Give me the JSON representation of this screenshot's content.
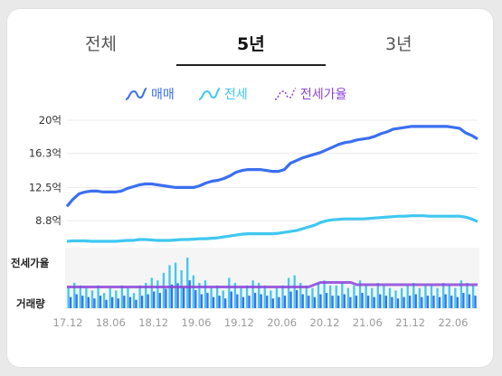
{
  "tabs": [
    {
      "label": "전체",
      "active": false
    },
    {
      "label": "5년",
      "active": true
    },
    {
      "label": "3년",
      "active": false
    }
  ],
  "legend": [
    {
      "label": "매매",
      "color": "#3a6ff0",
      "icon": "wave-solid-icon"
    },
    {
      "label": "전세",
      "color": "#3fc8f0",
      "icon": "wave-solid-icon"
    },
    {
      "label": "전세가율",
      "color": "#8b45d8",
      "icon": "wave-dashed-icon"
    }
  ],
  "lower_labels": {
    "ratio": "전세가율",
    "volume": "거래량"
  },
  "chart_data": {
    "type": "line",
    "y_ticks": [
      "20억",
      "16.3억",
      "12.5억",
      "8.8억"
    ],
    "y_tick_values": [
      20,
      16.3,
      12.5,
      8.8
    ],
    "ylim": [
      6,
      20.5
    ],
    "x_ticks": [
      "17.12",
      "18.06",
      "18.12",
      "19.06",
      "19.12",
      "20.06",
      "20.12",
      "21.06",
      "21.12",
      "22.06"
    ],
    "series": [
      {
        "name": "매매",
        "color": "#3a6ff0",
        "values": [
          10.4,
          11.2,
          11.8,
          12.0,
          12.1,
          12.1,
          12.0,
          12.0,
          12.0,
          12.1,
          12.4,
          12.6,
          12.8,
          12.9,
          12.9,
          12.8,
          12.7,
          12.6,
          12.5,
          12.5,
          12.5,
          12.5,
          12.7,
          13.0,
          13.2,
          13.3,
          13.5,
          13.8,
          14.2,
          14.4,
          14.5,
          14.5,
          14.5,
          14.4,
          14.3,
          14.3,
          14.5,
          15.2,
          15.5,
          15.8,
          16.0,
          16.2,
          16.4,
          16.7,
          17.0,
          17.3,
          17.5,
          17.6,
          17.8,
          17.9,
          18.0,
          18.2,
          18.5,
          18.7,
          19.0,
          19.1,
          19.2,
          19.3,
          19.3,
          19.3,
          19.3,
          19.3,
          19.3,
          19.3,
          19.2,
          19.1,
          18.6,
          18.3,
          17.9
        ]
      },
      {
        "name": "전세",
        "color": "#3fc8f0",
        "values": [
          6.5,
          6.55,
          6.55,
          6.55,
          6.5,
          6.5,
          6.5,
          6.5,
          6.5,
          6.55,
          6.6,
          6.6,
          6.7,
          6.7,
          6.65,
          6.6,
          6.6,
          6.6,
          6.65,
          6.7,
          6.7,
          6.75,
          6.8,
          6.8,
          6.85,
          6.9,
          7.0,
          7.1,
          7.2,
          7.3,
          7.35,
          7.35,
          7.35,
          7.35,
          7.35,
          7.4,
          7.5,
          7.6,
          7.7,
          7.9,
          8.1,
          8.3,
          8.6,
          8.8,
          8.9,
          8.95,
          9.0,
          9.0,
          9.0,
          9.0,
          9.05,
          9.1,
          9.15,
          9.2,
          9.25,
          9.3,
          9.3,
          9.35,
          9.35,
          9.35,
          9.3,
          9.3,
          9.3,
          9.3,
          9.3,
          9.3,
          9.2,
          9.0,
          8.7
        ]
      },
      {
        "name": "전세가율",
        "color": "#8b45d8",
        "values": [
          55,
          55,
          55,
          55,
          55,
          55,
          55,
          55,
          55,
          55,
          55,
          55,
          55,
          55,
          55,
          55,
          55,
          55,
          55,
          55,
          55,
          55,
          55,
          55,
          55,
          55,
          55,
          55,
          55,
          55,
          55,
          55,
          55,
          55,
          55,
          55,
          55,
          55,
          55,
          55,
          55,
          56,
          57,
          57,
          57,
          57,
          57,
          57,
          56,
          56,
          56,
          56,
          56,
          56,
          56,
          56,
          56,
          56,
          56,
          56,
          56,
          56,
          56,
          56,
          56,
          56,
          56,
          56,
          56
        ]
      }
    ],
    "volume": [
      8,
      10,
      9,
      8,
      7,
      9,
      6,
      8,
      7,
      9,
      8,
      6,
      9,
      10,
      12,
      11,
      14,
      17,
      18,
      15,
      20,
      13,
      10,
      11,
      8,
      9,
      7,
      12,
      10,
      8,
      9,
      11,
      10,
      9,
      7,
      8,
      9,
      12,
      13,
      10,
      9,
      8,
      10,
      11,
      9,
      9,
      10,
      8,
      9,
      11,
      9,
      8,
      10,
      9,
      8,
      7,
      8,
      9,
      10,
      8,
      9,
      9,
      8,
      10,
      9,
      8,
      11,
      10,
      9
    ]
  }
}
